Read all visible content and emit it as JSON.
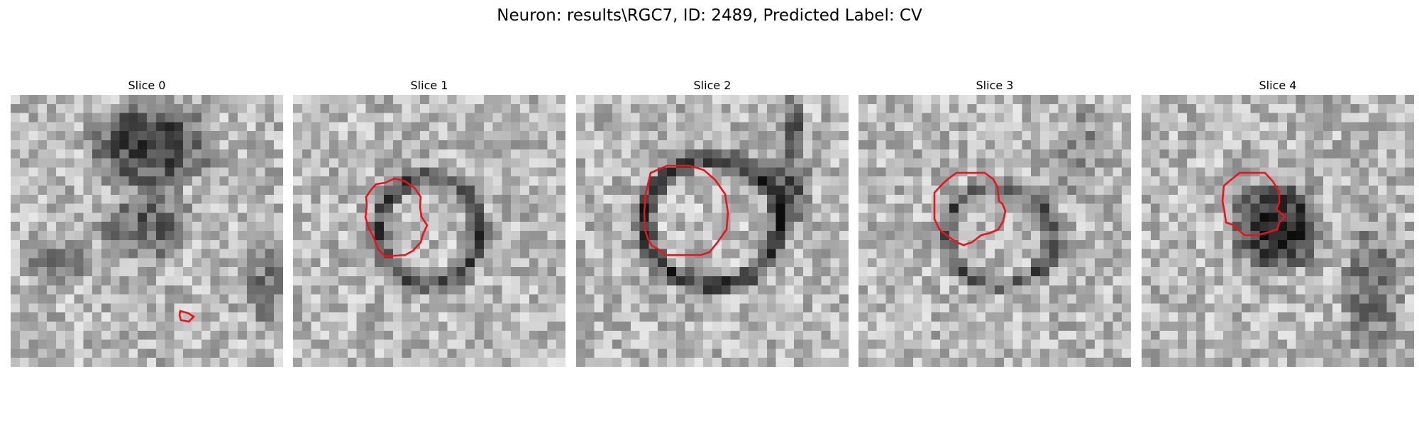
{
  "figure": {
    "title": "Neuron: results\\RGC7, ID: 2489, Predicted Label: CV"
  },
  "colors": {
    "contour": "#e8141b",
    "background": "#ffffff",
    "colormap": "gray"
  },
  "slices": [
    {
      "label": "Slice 0",
      "seed": 11
    },
    {
      "label": "Slice 1",
      "seed": 23
    },
    {
      "label": "Slice 2",
      "seed": 37
    },
    {
      "label": "Slice 3",
      "seed": 51
    },
    {
      "label": "Slice 4",
      "seed": 67
    }
  ]
}
